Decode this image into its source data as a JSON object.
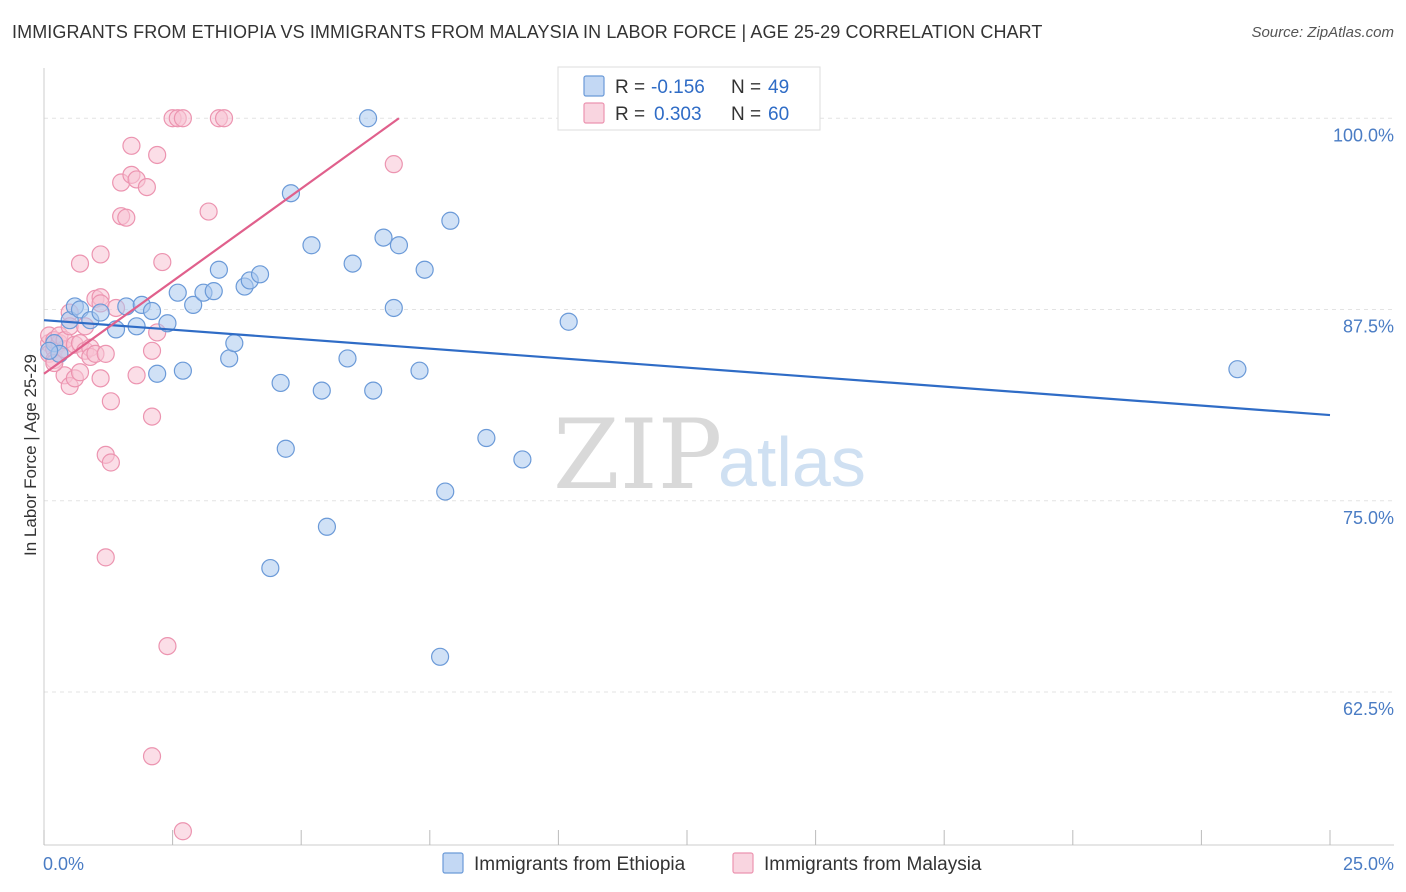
{
  "header": {
    "title": "IMMIGRANTS FROM ETHIOPIA VS IMMIGRANTS FROM MALAYSIA IN LABOR FORCE | AGE 25-29 CORRELATION CHART",
    "source": "Source: ZipAtlas.com"
  },
  "watermark": {
    "zip": "ZIP",
    "atlas": "atlas"
  },
  "colors": {
    "ethiopia_fill": "#a9c8ef",
    "ethiopia_stroke": "#6b9ad8",
    "ethiopia_line": "#2f6cc6",
    "malaysia_fill": "#f7c3d3",
    "malaysia_stroke": "#ec94b0",
    "malaysia_line": "#e0608c",
    "tick_label": "#4a7cc4"
  },
  "legend": {
    "ethiopia": {
      "r_label": "R =",
      "r_value": "-0.156",
      "n_label": "N =",
      "n_value": "49"
    },
    "malaysia": {
      "r_label": "R =",
      "r_value": "0.303",
      "n_label": "N =",
      "n_value": "60"
    }
  },
  "chart_data": {
    "type": "scatter",
    "title": "IMMIGRANTS FROM ETHIOPIA VS IMMIGRANTS FROM MALAYSIA IN LABOR FORCE | AGE 25-29 CORRELATION CHART",
    "xlabel": "",
    "ylabel": "In Labor Force | Age 25-29",
    "xlim": [
      0,
      25
    ],
    "ylim": [
      52.5,
      102.5
    ],
    "x_tick_labels": [
      "0.0%",
      "25.0%"
    ],
    "y_ticks": [
      62.5,
      75.0,
      87.5,
      100.0
    ],
    "y_tick_labels": [
      "62.5%",
      "75.0%",
      "87.5%",
      "100.0%"
    ],
    "grid": true,
    "legend_position": "top-center",
    "series": [
      {
        "name": "Immigrants from Ethiopia",
        "color": "#6b9ad8",
        "trend": {
          "x": [
            0,
            25
          ],
          "y": [
            86.8,
            80.6
          ]
        },
        "points": [
          [
            0.2,
            85.3
          ],
          [
            0.3,
            84.6
          ],
          [
            0.5,
            86.8
          ],
          [
            0.6,
            87.7
          ],
          [
            0.7,
            87.5
          ],
          [
            0.9,
            86.8
          ],
          [
            1.1,
            87.3
          ],
          [
            1.4,
            86.2
          ],
          [
            1.6,
            87.7
          ],
          [
            1.8,
            86.4
          ],
          [
            1.9,
            87.8
          ],
          [
            2.1,
            87.4
          ],
          [
            2.2,
            83.3
          ],
          [
            2.4,
            86.6
          ],
          [
            2.6,
            88.6
          ],
          [
            2.7,
            83.5
          ],
          [
            2.9,
            87.8
          ],
          [
            3.1,
            88.6
          ],
          [
            3.3,
            88.7
          ],
          [
            3.4,
            90.1
          ],
          [
            3.6,
            84.3
          ],
          [
            3.7,
            85.3
          ],
          [
            3.9,
            89.0
          ],
          [
            4.0,
            89.4
          ],
          [
            4.2,
            89.8
          ],
          [
            4.6,
            82.7
          ],
          [
            4.7,
            78.4
          ],
          [
            4.4,
            70.6
          ],
          [
            4.8,
            95.1
          ],
          [
            5.2,
            91.7
          ],
          [
            5.4,
            82.2
          ],
          [
            5.5,
            73.3
          ],
          [
            5.9,
            84.3
          ],
          [
            6.0,
            90.5
          ],
          [
            6.3,
            100.0
          ],
          [
            6.4,
            82.2
          ],
          [
            6.6,
            92.2
          ],
          [
            6.8,
            87.6
          ],
          [
            6.9,
            91.7
          ],
          [
            7.3,
            83.5
          ],
          [
            7.4,
            90.1
          ],
          [
            7.7,
            64.8
          ],
          [
            7.9,
            93.3
          ],
          [
            7.8,
            75.6
          ],
          [
            8.6,
            79.1
          ],
          [
            9.3,
            77.7
          ],
          [
            10.2,
            86.7
          ],
          [
            23.2,
            83.6
          ],
          [
            0.1,
            84.8
          ]
        ]
      },
      {
        "name": "Immigrants from Malaysia",
        "color": "#ec94b0",
        "trend": {
          "x": [
            0,
            6.9
          ],
          "y": [
            83.3,
            100.0
          ]
        },
        "points": [
          [
            0.1,
            85.3
          ],
          [
            0.1,
            84.6
          ],
          [
            0.1,
            85.8
          ],
          [
            0.2,
            84.9
          ],
          [
            0.2,
            85.5
          ],
          [
            0.2,
            84.2
          ],
          [
            0.3,
            85.3
          ],
          [
            0.3,
            85.8
          ],
          [
            0.3,
            84.6
          ],
          [
            0.4,
            84.9
          ],
          [
            0.4,
            83.2
          ],
          [
            0.4,
            85.5
          ],
          [
            0.5,
            87.3
          ],
          [
            0.5,
            86.4
          ],
          [
            0.5,
            82.5
          ],
          [
            0.6,
            83.0
          ],
          [
            0.6,
            85.2
          ],
          [
            0.7,
            85.3
          ],
          [
            0.7,
            83.4
          ],
          [
            0.8,
            84.8
          ],
          [
            0.8,
            86.4
          ],
          [
            0.9,
            85.0
          ],
          [
            0.9,
            84.4
          ],
          [
            1.0,
            84.6
          ],
          [
            1.0,
            88.2
          ],
          [
            1.1,
            88.3
          ],
          [
            1.1,
            87.9
          ],
          [
            1.2,
            84.6
          ],
          [
            1.1,
            83.0
          ],
          [
            1.2,
            78.0
          ],
          [
            1.4,
            87.6
          ],
          [
            1.3,
            81.5
          ],
          [
            1.3,
            77.5
          ],
          [
            1.2,
            71.3
          ],
          [
            1.5,
            93.6
          ],
          [
            1.6,
            93.5
          ],
          [
            1.5,
            95.8
          ],
          [
            1.7,
            96.3
          ],
          [
            1.7,
            98.2
          ],
          [
            1.8,
            96.0
          ],
          [
            1.8,
            83.2
          ],
          [
            2.0,
            95.5
          ],
          [
            2.1,
            84.8
          ],
          [
            2.1,
            80.5
          ],
          [
            2.2,
            86.0
          ],
          [
            2.2,
            97.6
          ],
          [
            2.3,
            90.6
          ],
          [
            2.4,
            65.5
          ],
          [
            2.1,
            58.3
          ],
          [
            2.7,
            53.4
          ],
          [
            0.7,
            90.5
          ],
          [
            1.1,
            91.1
          ],
          [
            3.2,
            93.9
          ],
          [
            2.5,
            100.0
          ],
          [
            2.6,
            100.0
          ],
          [
            2.7,
            100.0
          ],
          [
            3.4,
            100.0
          ],
          [
            3.5,
            100.0
          ],
          [
            6.8,
            97.0
          ],
          [
            0.2,
            84.0
          ]
        ]
      }
    ]
  },
  "bottom_legend": {
    "ethiopia": "Immigrants from Ethiopia",
    "malaysia": "Immigrants from Malaysia"
  }
}
